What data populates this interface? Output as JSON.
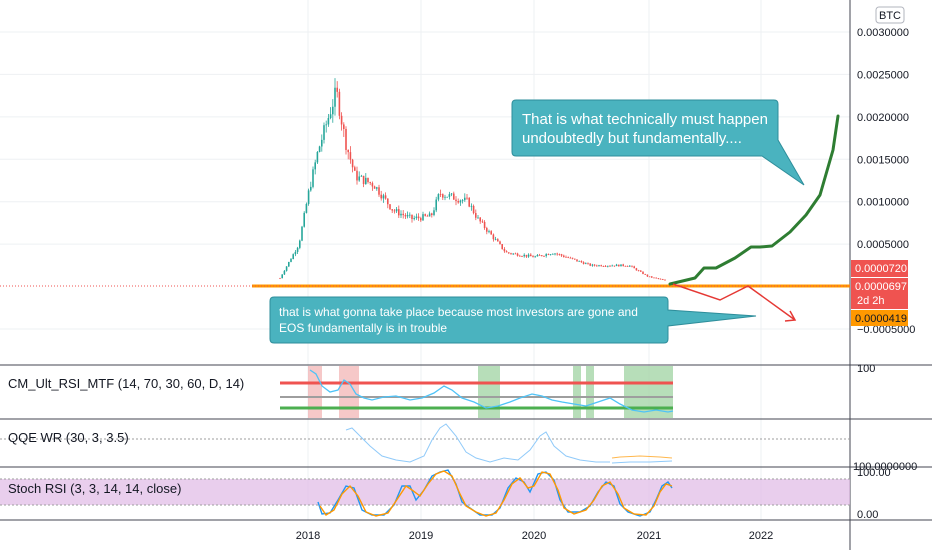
{
  "currency_badge": "BTC",
  "price_axis": {
    "ticks": [
      "0.0030000",
      "0.0025000",
      "0.0020000",
      "0.0015000",
      "0.0010000",
      "0.0005000",
      "−0.0005000"
    ],
    "tick_values": [
      0.003,
      0.0025,
      0.002,
      0.0015,
      0.001,
      0.0005,
      -0.0005
    ]
  },
  "price_tags": [
    {
      "label": "0.0000720",
      "value": 7.2e-05,
      "color": "#ef5350",
      "text_color": "#ffffff"
    },
    {
      "label": "0.0000697",
      "sublabel": "2d 2h",
      "value": 6.97e-05,
      "color": "#ef5350",
      "text_color": "#ffffff"
    },
    {
      "label": "0.0000419",
      "value": 4.19e-05,
      "color": "#ff9800",
      "text_color": "#131722"
    }
  ],
  "callouts": {
    "top": "That is what technically must happen undoubtedly but fundamentally....",
    "top_lines": [
      "That is what technically must happen",
      "undoubtedly but fundamentally...."
    ],
    "bottom": "that is what gonna take place because most investors are gone and EOS fundamentally is in trouble",
    "bottom_lines": [
      "that is what gonna take place because most investors are gone and",
      "EOS fundamentally is in trouble"
    ]
  },
  "indicators": {
    "rsi_title": "CM_Ult_RSI_MTF (14, 70, 30, 60, D, 14)",
    "rsi_axis_label": "100",
    "qqe_title": "QQE WR (30, 3, 3.5)",
    "qqe_axis_label": "100.0000000",
    "stoch_title": "Stoch RSI (3, 3, 14, 14, close)",
    "stoch_axis_top": "100.00",
    "stoch_axis_bottom": "0.00"
  },
  "time_axis": [
    "2018",
    "2019",
    "2020",
    "2021",
    "2022"
  ],
  "colors": {
    "bull": "#26a69a",
    "bear": "#ef5350",
    "callout": "#4ab3bf",
    "forecast_up": "#2e7d32",
    "forecast_down": "#e53935",
    "support": "#ff9800",
    "rsi_upper": "#ef5350",
    "rsi_lower": "#4caf50",
    "stoch_band": "#e1bee7"
  },
  "chart_data": {
    "type": "candlestick",
    "title": "",
    "xlabel": "",
    "ylabel": "",
    "ylim": [
      -0.0006,
      0.0033
    ],
    "xlim": [
      "2017-09",
      "2022-10"
    ],
    "support_level": 4.2e-05,
    "series": [
      {
        "name": "",
        "x": [
          "2017-10",
          "2017-12",
          "2018-01",
          "2018-02",
          "2018-04",
          "2018-05",
          "2018-06",
          "2018-08",
          "2018-10",
          "2018-12",
          "2019-02",
          "2019-03",
          "2019-06",
          "2019-07",
          "2019-10",
          "2020-01",
          "2020-03",
          "2020-07",
          "2020-11",
          "2021-01",
          "2021-03"
        ],
        "y": [
          0.0001,
          0.0005,
          0.0011,
          0.0016,
          0.0023,
          0.0017,
          0.0013,
          0.0012,
          0.0009,
          0.0008,
          0.00083,
          0.0011,
          0.001,
          0.0008,
          0.0004,
          0.00035,
          0.0004,
          0.00025,
          0.00025,
          0.00012,
          7e-05
        ]
      },
      {
        "name": "",
        "x": [
          "2021-03",
          "2021-06",
          "2021-09",
          "2021-11",
          "2022-01",
          "2022-04",
          "2022-07",
          "2022-10"
        ],
        "y": [
          7e-05,
          0.0001,
          0.0002,
          0.0002,
          0.0003,
          0.00045,
          0.0009,
          0.002
        ]
      },
      {
        "name": "",
        "x": [
          "2021-03",
          "2021-06",
          "2021-09",
          "2021-11",
          "2022-02",
          "2022-07"
        ],
        "y": [
          7e-05,
          3e-05,
          -4e-05,
          3e-05,
          -0.0001,
          -0.0004
        ]
      }
    ],
    "rsi_bands": [
      70,
      30
    ],
    "stoch_band": [
      20,
      80
    ]
  }
}
